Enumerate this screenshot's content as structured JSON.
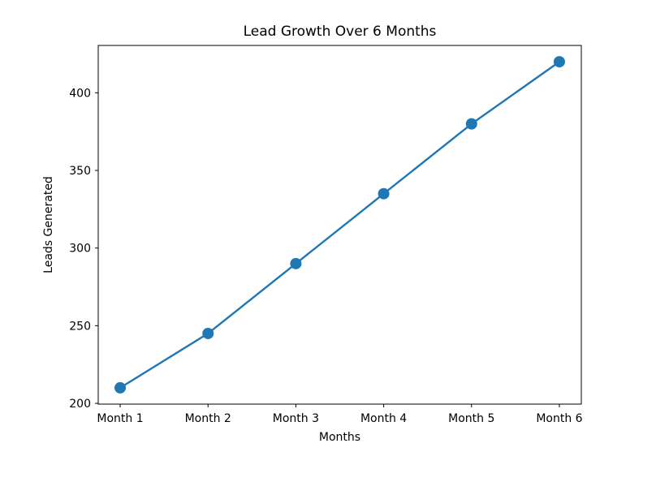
{
  "figure": {
    "background": "#ffffff"
  },
  "chart_data": {
    "type": "line",
    "title": "Lead Growth Over 6 Months",
    "xlabel": "Months",
    "ylabel": "Leads Generated",
    "categories": [
      "Month 1",
      "Month 2",
      "Month 3",
      "Month 4",
      "Month 5",
      "Month 6"
    ],
    "series": [
      {
        "name": "Leads Generated",
        "values": [
          210,
          245,
          290,
          335,
          380,
          420
        ]
      }
    ],
    "yticks": [
      200,
      250,
      300,
      350,
      400
    ],
    "ylim": [
      199.5,
      430.5
    ],
    "xlim": [
      -0.25,
      5.25
    ],
    "line_color": "#1f77b4",
    "marker": "o",
    "marker_color": "#1f77b4",
    "axis_color": "#000000",
    "grid": false
  }
}
